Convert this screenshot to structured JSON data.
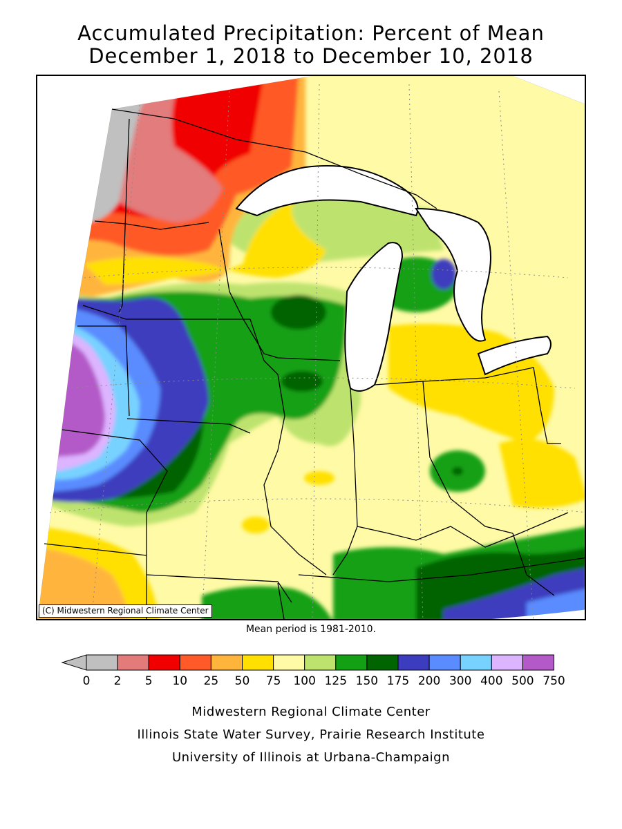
{
  "title": {
    "line1": "Accumulated Precipitation: Percent of Mean",
    "line2": "December 1, 2018 to December 10, 2018"
  },
  "map": {
    "copyright": "(C) Midwestern Regional Climate Center",
    "mean_period": "Mean period is 1981-2010."
  },
  "legend": {
    "below_min_color": "#c0c0c0",
    "bins": [
      {
        "from": 0,
        "to": 2,
        "color": "#c0c0c0"
      },
      {
        "from": 2,
        "to": 5,
        "color": "#e37b7b"
      },
      {
        "from": 5,
        "to": 10,
        "color": "#f00000"
      },
      {
        "from": 10,
        "to": 25,
        "color": "#ff5a28"
      },
      {
        "from": 25,
        "to": 50,
        "color": "#ffb53c"
      },
      {
        "from": 50,
        "to": 75,
        "color": "#ffe000"
      },
      {
        "from": 75,
        "to": 100,
        "color": "#fffaa5"
      },
      {
        "from": 100,
        "to": 125,
        "color": "#bde36e"
      },
      {
        "from": 125,
        "to": 150,
        "color": "#14a014"
      },
      {
        "from": 150,
        "to": 175,
        "color": "#006400"
      },
      {
        "from": 175,
        "to": 200,
        "color": "#3c3cbe"
      },
      {
        "from": 200,
        "to": 300,
        "color": "#5a8cff"
      },
      {
        "from": 300,
        "to": 400,
        "color": "#78d2ff"
      },
      {
        "from": 400,
        "to": 500,
        "color": "#ddb4ff"
      },
      {
        "from": 500,
        "to": 750,
        "color": "#b45ac8"
      }
    ],
    "tick_labels": [
      "0",
      "2",
      "5",
      "10",
      "25",
      "50",
      "75",
      "100",
      "125",
      "150",
      "175",
      "200",
      "300",
      "400",
      "500",
      "750"
    ]
  },
  "credits": {
    "line1": "Midwestern Regional Climate Center",
    "line2": "Illinois State Water Survey, Prairie Research Institute",
    "line3": "University of Illinois at Urbana-Champaign"
  }
}
